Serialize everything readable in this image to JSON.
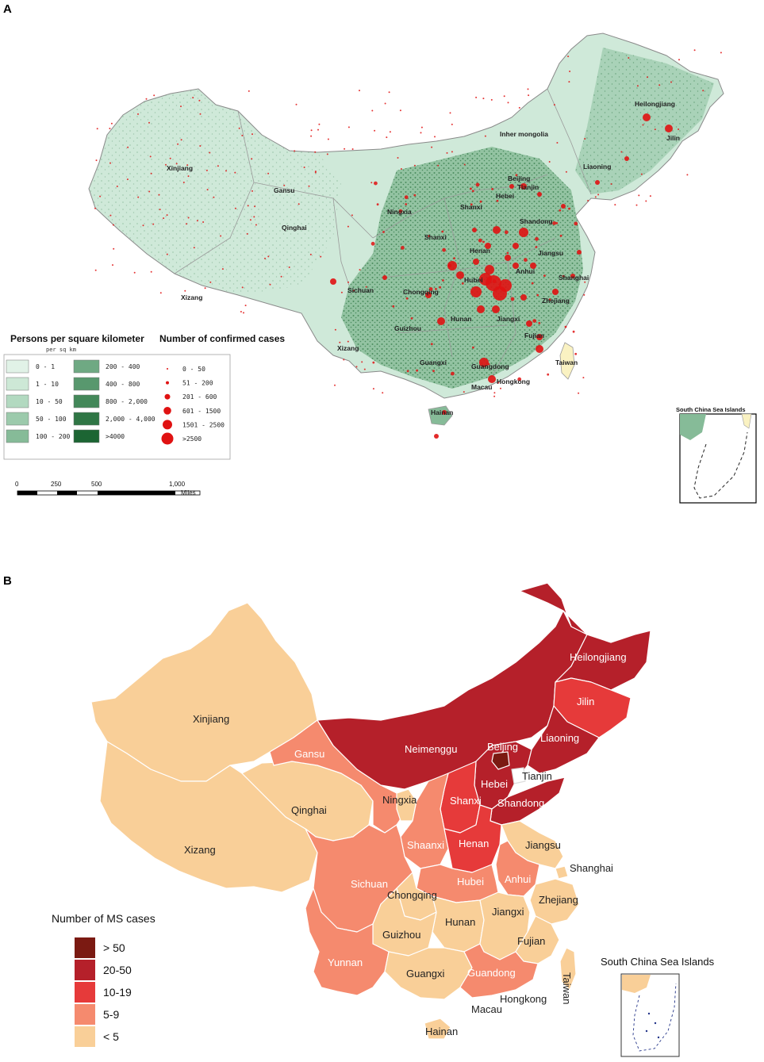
{
  "panel_a": {
    "letter": "A",
    "labels": [
      "Heilongjiang",
      "Jilin",
      "Inher mongolia",
      "Liaoning",
      "Xinjiang",
      "Gansu",
      "Beijing",
      "Tianjin",
      "Hebei",
      "Ningxia",
      "Shanxi",
      "Qinghai",
      "Shandong",
      "Shanxi",
      "Henan",
      "Jiangsu",
      "Anhui",
      "Shanghai",
      "Hubei",
      "Xizang",
      "Sichuan",
      "Chongqing",
      "Zhejiang",
      "Hunan",
      "Jiangxi",
      "Guizhou",
      "Fujian",
      "Xizang",
      "Guangxi",
      "Taiwan",
      "Guangdong",
      "Hongkong",
      "Macau",
      "Hainan"
    ],
    "density_legend": {
      "title": "Persons per square kilometer",
      "subtitle": "per    sq    km",
      "classes_left": [
        "0 - 1",
        "1 - 10",
        "10 - 50",
        "50 - 100",
        "100 - 200"
      ],
      "classes_right": [
        "200 - 400",
        "400 - 800",
        "800 - 2,000",
        "2,000 - 4,000",
        ">4000"
      ],
      "colors_left": [
        "#e1f2e7",
        "#cde8d6",
        "#b2d9c0",
        "#9ccaac",
        "#86bb98"
      ],
      "colors_right": [
        "#6fa983",
        "#58986e",
        "#438859",
        "#2f7645",
        "#1c6533"
      ]
    },
    "cases_legend": {
      "title": "Number of confirmed cases",
      "classes": [
        "0 - 50",
        "51 - 200",
        "201 - 600",
        "601 - 1500",
        "1501 - 2500",
        ">2500"
      ],
      "color": "#e01212"
    },
    "scale_bar": {
      "ticks": [
        "0",
        "250",
        "500",
        "1,000"
      ],
      "unit": "Miles"
    },
    "inset_title": "South China Sea Islands"
  },
  "panel_b": {
    "letter": "B",
    "legend_title": "Number of MS cases",
    "classes": [
      {
        "label": "> 50",
        "color": "#7b1a12"
      },
      {
        "label": "20-50",
        "color": "#b5202a"
      },
      {
        "label": "10-19",
        "color": "#e63a3a"
      },
      {
        "label": "5-9",
        "color": "#f58a6e"
      },
      {
        "label": "< 5",
        "color": "#f9cf98"
      }
    ],
    "labels": [
      "Heilongjiang",
      "Jilin",
      "Xinjiang",
      "Liaoning",
      "Neimenggu",
      "Beijing",
      "Gansu",
      "Tianjin",
      "Hebei",
      "Ningxia",
      "Shanxi",
      "Qinghai",
      "Shandong",
      "Shaanxi",
      "Henan",
      "Jiangsu",
      "Xizang",
      "Shanghai",
      "Anhui",
      "Hubei",
      "Sichuan",
      "Chongqing",
      "Zhejiang",
      "Hunan",
      "Jiangxi",
      "Guizhou",
      "Fujian",
      "Yunnan",
      "Guangxi",
      "Guandong",
      "Taiwan",
      "Hongkong",
      "Macau",
      "Hainan"
    ],
    "inset_title": "South China Sea Islands"
  }
}
